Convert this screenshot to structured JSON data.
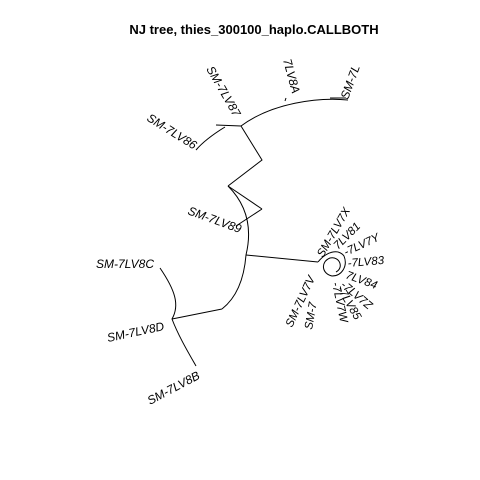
{
  "title": "NJ tree,  thies_300100_haplo.CALLBOTH",
  "tips": {
    "t_7L": "SM-7L",
    "t_lv8a": "7LV8A",
    "t_lv87": "SM-7LV87",
    "t_lv86": "SM-7LV86",
    "t_lv89": "SM-7LV89",
    "t_lv8c": "SM-7LV8C",
    "t_lv8d": "SM-7LV8D",
    "t_lv8b": "SM-7LV8B",
    "t_lv7x": "SM-7LV7X",
    "t_lv81": "7LV81",
    "t_lv7y": "-7LV7Y",
    "t_lv83": "-7LV83",
    "t_lv84": "7LV84",
    "t_lv7z": "-7LV7Z",
    "t_lv85": "-7LV85",
    "t_lv7w": "-7LV7W",
    "t_sm7": "SM-7",
    "t_lv7v": "SM-7LV7V"
  }
}
